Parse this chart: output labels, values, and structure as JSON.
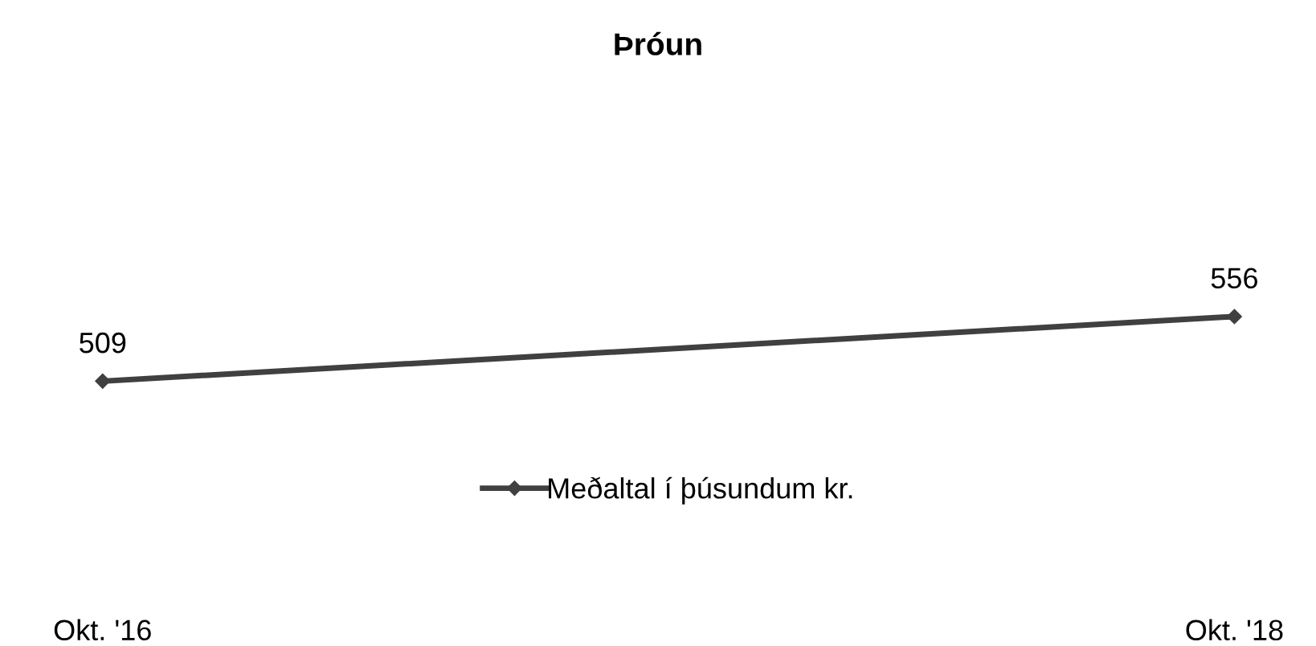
{
  "chart_data": {
    "type": "line",
    "title": "Þróun",
    "categories": [
      "Okt. '16",
      "Okt. '18"
    ],
    "series": [
      {
        "name": "Meðaltal í þúsundum kr.",
        "color": "#404040",
        "values": [
          509,
          556
        ]
      }
    ],
    "data_labels": true,
    "marker": "diamond",
    "line_style": "solid",
    "legend": "bottom",
    "grid": false,
    "tick_labels": "x"
  }
}
